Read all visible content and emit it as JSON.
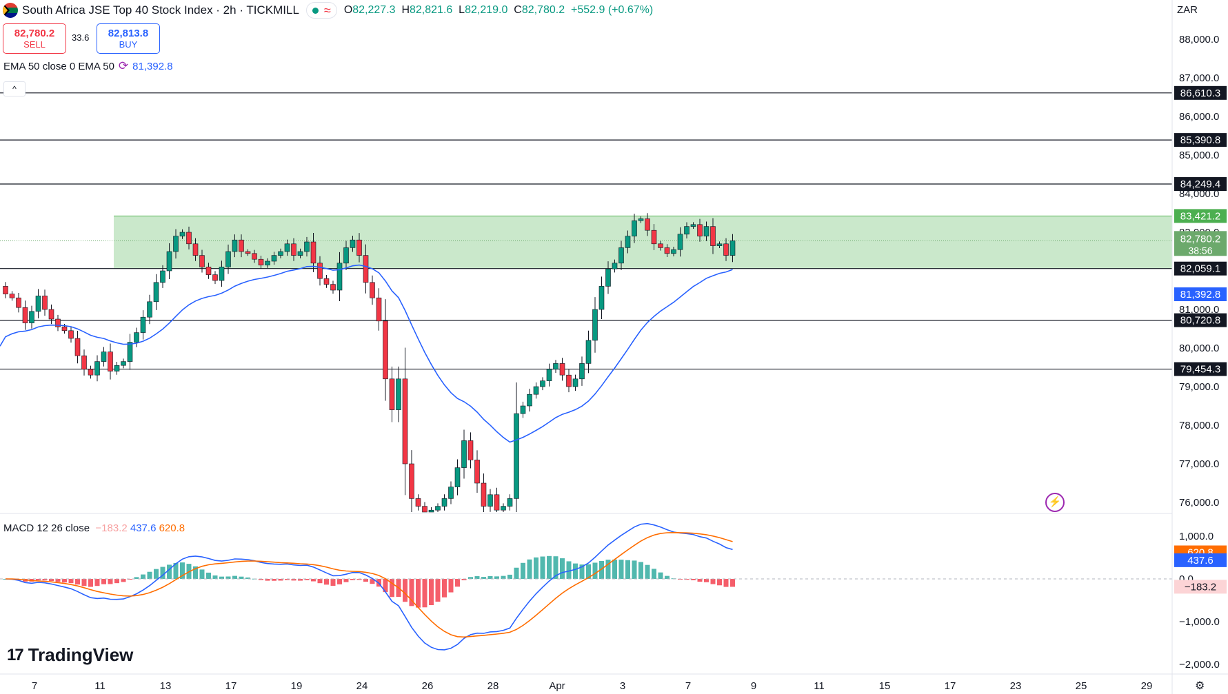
{
  "header": {
    "title": "South Africa JSE Top 40 Stock Index · 2h · TICKMILL",
    "wave_icon": "≈",
    "ohlc": {
      "open_label": "O",
      "open": "82,227.3",
      "high_label": "H",
      "high": "82,821.6",
      "low_label": "L",
      "low": "82,219.0",
      "close_label": "C",
      "close": "82,780.2",
      "change": "+552.9 (+0.67%)"
    }
  },
  "trade": {
    "sell_price": "82,780.2",
    "sell_label": "SELL",
    "spread": "33.6",
    "buy_price": "82,813.8",
    "buy_label": "BUY"
  },
  "indicators": {
    "ema_label": "EMA 50 close 0 EMA 50",
    "ema_value": "81,392.8",
    "collapse_icon": "^",
    "macd_label": "MACD 12 26 close",
    "macd_hist": "−183.2",
    "macd_line": "437.6",
    "macd_signal": "620.8"
  },
  "axis": {
    "currency": "ZAR"
  },
  "brand": {
    "logo_mark": "17",
    "logo_text": "TradingView"
  },
  "icons": {
    "bolt": "⚡",
    "gear": "⚙",
    "cycle": "⟳"
  },
  "colors": {
    "up": "#089981",
    "down": "#f23645",
    "zone": "#c4e6c5",
    "ema": "#2962ff",
    "signal": "#ff6d00",
    "axis_text": "#131722"
  },
  "chart_data": [
    {
      "type": "candlestick",
      "title": "South Africa JSE Top 40 Stock Index · 2h · TICKMILL",
      "ylabel": "ZAR",
      "ylim": [
        75700,
        88800
      ],
      "y_ticks": [
        76000,
        77000,
        78000,
        79000,
        80000,
        81000,
        83000,
        84000,
        85000,
        86000,
        87000,
        88000
      ],
      "y_tick_labels": [
        "76,000.0",
        "77,000.0",
        "78,000.0",
        "79,000.0",
        "80,000.0",
        "81,000.0",
        "83,000.0",
        "84,000.0",
        "85,000.0",
        "86,000.0",
        "87,000.0",
        "88,000.0"
      ],
      "x_tick_labels": [
        "7",
        "11",
        "13",
        "17",
        "19",
        "24",
        "26",
        "28",
        "Apr",
        "3",
        "7",
        "9",
        "11",
        "15",
        "17",
        "23",
        "25",
        "29"
      ],
      "horizontal_lines": [
        {
          "value": 86610.3,
          "label": "86,610.3"
        },
        {
          "value": 85390.8,
          "label": "85,390.8"
        },
        {
          "value": 84249.4,
          "label": "84,249.4"
        },
        {
          "value": 82059.1,
          "label": "82,059.1"
        },
        {
          "value": 80720.8,
          "label": "80,720.8"
        },
        {
          "value": 79454.3,
          "label": "79,454.3"
        }
      ],
      "zone": {
        "from": 82059.1,
        "to": 83421.2,
        "label": "83,421.2"
      },
      "last_price": {
        "value": 82780.2,
        "label": "82,780.2",
        "countdown": "38:56"
      },
      "ema_price": {
        "value": 81392.8,
        "label": "81,392.8"
      },
      "closes": [
        81400,
        81300,
        81050,
        80650,
        80950,
        81350,
        81000,
        80750,
        80550,
        80450,
        80250,
        79800,
        79450,
        79300,
        79650,
        79900,
        79400,
        79550,
        79650,
        80150,
        80400,
        80800,
        81200,
        81700,
        82000,
        82500,
        82900,
        83000,
        82700,
        82400,
        82100,
        81900,
        81750,
        82100,
        82500,
        82800,
        82500,
        82450,
        82300,
        82150,
        82250,
        82400,
        82500,
        82700,
        82400,
        82500,
        82750,
        82200,
        81800,
        81650,
        81500,
        82200,
        82600,
        82800,
        82400,
        81700,
        81300,
        80700,
        79200,
        78400,
        79200,
        77000,
        76100,
        75900,
        75700,
        75800,
        75900,
        76100,
        76400,
        76900,
        77600,
        77100,
        76500,
        75900,
        76200,
        75800,
        75900,
        76100,
        78300,
        78500,
        78800,
        79000,
        79150,
        79450,
        79600,
        79300,
        79000,
        79200,
        79600,
        80200,
        81000,
        81600,
        82050,
        82200,
        82600,
        82900,
        83300,
        83350,
        83050,
        82700,
        82600,
        82450,
        82550,
        82950,
        83150,
        83200,
        82900,
        83150,
        82650,
        82700,
        82400,
        82780
      ]
    },
    {
      "type": "bar",
      "title": "MACD 12 26 close",
      "ylim": [
        -2050,
        1400
      ],
      "y_ticks": [
        1000,
        0,
        -1000,
        -2000
      ],
      "y_tick_labels": [
        "1,000.0",
        "0.0",
        "−1,000.0",
        "−2,000.0"
      ],
      "series": [
        {
          "name": "Histogram",
          "value": -183.2,
          "label": "−183.2",
          "color": "#f23645"
        },
        {
          "name": "MACD",
          "value": 437.6,
          "label": "437.6",
          "color": "#2962ff"
        },
        {
          "name": "Signal",
          "value": 620.8,
          "label": "620.8",
          "color": "#ff6d00"
        }
      ]
    }
  ]
}
